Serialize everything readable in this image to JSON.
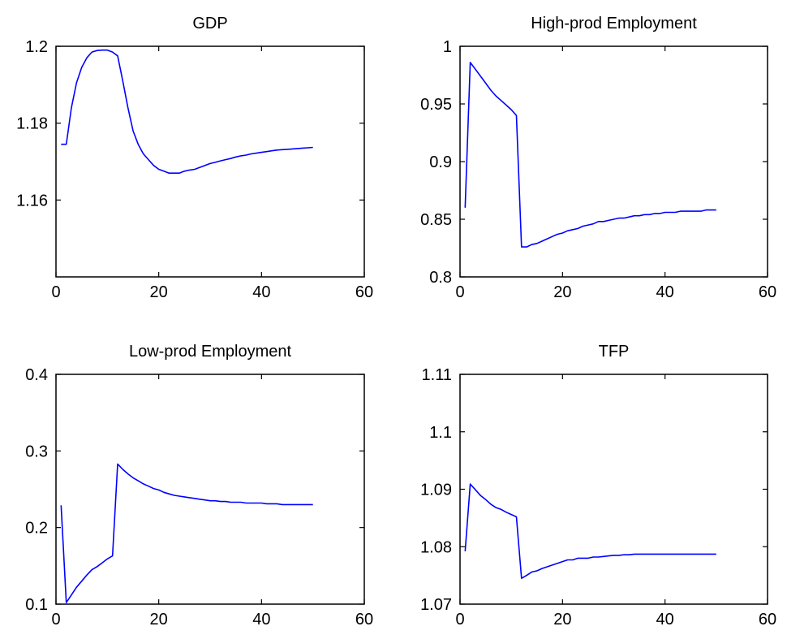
{
  "chart_data": [
    {
      "type": "line",
      "title": "GDP",
      "xlabel": "",
      "ylabel": "",
      "xlim": [
        0,
        60
      ],
      "ylim": [
        1.14,
        1.2
      ],
      "xticks": [
        0,
        20,
        40,
        60
      ],
      "yticks": [
        1.16,
        1.18,
        1.2
      ],
      "ytick_labels": [
        "1.16",
        "1.18",
        "1.2"
      ],
      "xtick_labels": [
        "0",
        "20",
        "40",
        "60"
      ],
      "grid": false,
      "series": [
        {
          "color": "#0000ff",
          "x": [
            1,
            2,
            3,
            4,
            5,
            6,
            7,
            8,
            9,
            10,
            11,
            12,
            13,
            14,
            15,
            16,
            17,
            18,
            19,
            20,
            21,
            22,
            23,
            24,
            25,
            26,
            27,
            28,
            29,
            30,
            31,
            32,
            33,
            34,
            35,
            36,
            37,
            38,
            39,
            40,
            41,
            42,
            43,
            44,
            45,
            46,
            47,
            48,
            49,
            50
          ],
          "y": [
            1.1745,
            1.1745,
            1.184,
            1.1905,
            1.1945,
            1.197,
            1.1985,
            1.1989,
            1.199,
            1.199,
            1.1985,
            1.1975,
            1.191,
            1.184,
            1.178,
            1.1745,
            1.172,
            1.1705,
            1.169,
            1.168,
            1.1675,
            1.167,
            1.167,
            1.167,
            1.1675,
            1.1678,
            1.168,
            1.1685,
            1.169,
            1.1695,
            1.1698,
            1.1702,
            1.1705,
            1.1708,
            1.1712,
            1.1715,
            1.1717,
            1.172,
            1.1722,
            1.1724,
            1.1726,
            1.1728,
            1.173,
            1.1731,
            1.1732,
            1.1733,
            1.1734,
            1.1735,
            1.1736,
            1.1737
          ]
        }
      ]
    },
    {
      "type": "line",
      "title": "High-prod Employment",
      "xlabel": "",
      "ylabel": "",
      "xlim": [
        0,
        60
      ],
      "ylim": [
        0.8,
        1.0
      ],
      "xticks": [
        0,
        20,
        40,
        60
      ],
      "yticks": [
        0.8,
        0.85,
        0.9,
        0.95,
        1.0
      ],
      "ytick_labels": [
        "0.8",
        "0.85",
        "0.9",
        "0.95",
        "1"
      ],
      "xtick_labels": [
        "0",
        "20",
        "40",
        "60"
      ],
      "grid": false,
      "series": [
        {
          "color": "#0000ff",
          "x": [
            1,
            2,
            3,
            4,
            5,
            6,
            7,
            8,
            9,
            10,
            11,
            12,
            13,
            14,
            15,
            16,
            17,
            18,
            19,
            20,
            21,
            22,
            23,
            24,
            25,
            26,
            27,
            28,
            29,
            30,
            31,
            32,
            33,
            34,
            35,
            36,
            37,
            38,
            39,
            40,
            41,
            42,
            43,
            44,
            45,
            46,
            47,
            48,
            49,
            50
          ],
          "y": [
            0.86,
            0.986,
            0.98,
            0.974,
            0.968,
            0.962,
            0.957,
            0.953,
            0.949,
            0.945,
            0.94,
            0.826,
            0.826,
            0.828,
            0.829,
            0.831,
            0.833,
            0.835,
            0.837,
            0.838,
            0.84,
            0.841,
            0.842,
            0.844,
            0.845,
            0.846,
            0.848,
            0.848,
            0.849,
            0.85,
            0.851,
            0.851,
            0.852,
            0.853,
            0.853,
            0.854,
            0.854,
            0.855,
            0.855,
            0.856,
            0.856,
            0.856,
            0.857,
            0.857,
            0.857,
            0.857,
            0.857,
            0.858,
            0.858,
            0.858
          ]
        }
      ]
    },
    {
      "type": "line",
      "title": "Low-prod Employment",
      "xlabel": "",
      "ylabel": "",
      "xlim": [
        0,
        60
      ],
      "ylim": [
        0.1,
        0.4
      ],
      "xticks": [
        0,
        20,
        40,
        60
      ],
      "yticks": [
        0.1,
        0.2,
        0.3,
        0.4
      ],
      "ytick_labels": [
        "0.1",
        "0.2",
        "0.3",
        "0.4"
      ],
      "xtick_labels": [
        "0",
        "20",
        "40",
        "60"
      ],
      "grid": false,
      "series": [
        {
          "color": "#0000ff",
          "x": [
            1,
            2,
            3,
            4,
            5,
            6,
            7,
            8,
            9,
            10,
            11,
            12,
            13,
            14,
            15,
            16,
            17,
            18,
            19,
            20,
            21,
            22,
            23,
            24,
            25,
            26,
            27,
            28,
            29,
            30,
            31,
            32,
            33,
            34,
            35,
            36,
            37,
            38,
            39,
            40,
            41,
            42,
            43,
            44,
            45,
            46,
            47,
            48,
            49,
            50
          ],
          "y": [
            0.229,
            0.102,
            0.112,
            0.122,
            0.13,
            0.138,
            0.145,
            0.149,
            0.154,
            0.159,
            0.163,
            0.283,
            0.276,
            0.27,
            0.265,
            0.261,
            0.257,
            0.254,
            0.251,
            0.249,
            0.246,
            0.244,
            0.242,
            0.241,
            0.24,
            0.239,
            0.238,
            0.237,
            0.236,
            0.235,
            0.235,
            0.234,
            0.234,
            0.233,
            0.233,
            0.233,
            0.232,
            0.232,
            0.232,
            0.232,
            0.231,
            0.231,
            0.231,
            0.23,
            0.23,
            0.23,
            0.23,
            0.23,
            0.23,
            0.23
          ]
        }
      ]
    },
    {
      "type": "line",
      "title": "TFP",
      "xlabel": "",
      "ylabel": "",
      "xlim": [
        0,
        60
      ],
      "ylim": [
        1.07,
        1.11
      ],
      "xticks": [
        0,
        20,
        40,
        60
      ],
      "yticks": [
        1.07,
        1.08,
        1.09,
        1.1,
        1.11
      ],
      "ytick_labels": [
        "1.07",
        "1.08",
        "1.09",
        "1.1",
        "1.11"
      ],
      "xtick_labels": [
        "0",
        "20",
        "40",
        "60"
      ],
      "grid": false,
      "series": [
        {
          "color": "#0000ff",
          "x": [
            1,
            2,
            3,
            4,
            5,
            6,
            7,
            8,
            9,
            10,
            11,
            12,
            13,
            14,
            15,
            16,
            17,
            18,
            19,
            20,
            21,
            22,
            23,
            24,
            25,
            26,
            27,
            28,
            29,
            30,
            31,
            32,
            33,
            34,
            35,
            36,
            37,
            38,
            39,
            40,
            41,
            42,
            43,
            44,
            45,
            46,
            47,
            48,
            49,
            50
          ],
          "y": [
            1.0792,
            1.0909,
            1.0899,
            1.0889,
            1.0882,
            1.0874,
            1.0868,
            1.0865,
            1.086,
            1.0856,
            1.0852,
            1.0745,
            1.075,
            1.0756,
            1.0758,
            1.0762,
            1.0765,
            1.0768,
            1.0771,
            1.0774,
            1.0777,
            1.0777,
            1.078,
            1.078,
            1.078,
            1.0782,
            1.0782,
            1.0783,
            1.0784,
            1.0785,
            1.0785,
            1.0786,
            1.0786,
            1.0787,
            1.0787,
            1.0787,
            1.0787,
            1.0787,
            1.0787,
            1.0787,
            1.0787,
            1.0787,
            1.0787,
            1.0787,
            1.0787,
            1.0787,
            1.0787,
            1.0787,
            1.0787,
            1.0787
          ]
        }
      ]
    }
  ]
}
